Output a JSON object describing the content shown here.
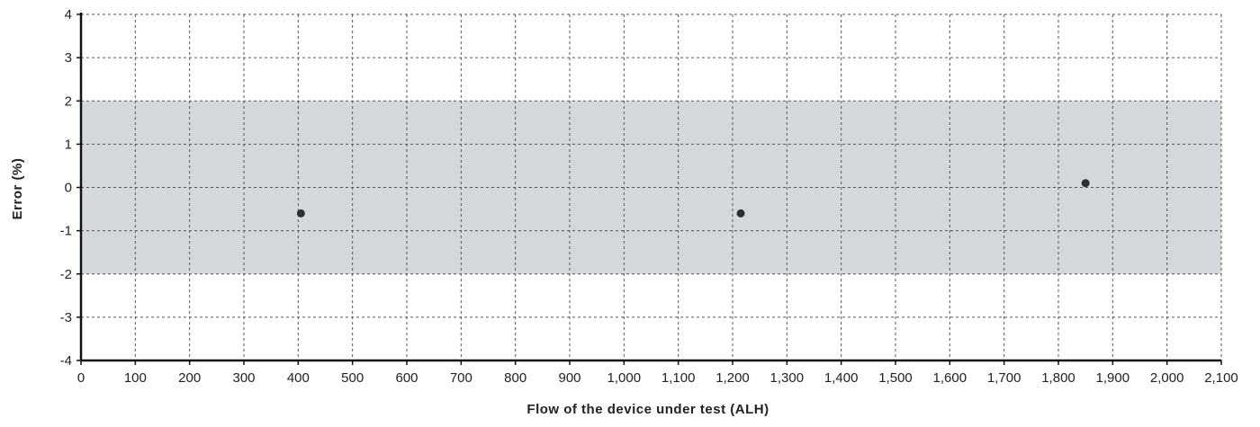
{
  "chart_data": {
    "type": "scatter",
    "title": "",
    "xlabel": "Flow of the device under test (ALH)",
    "ylabel": "Error (%)",
    "xlim": [
      0,
      2100
    ],
    "ylim": [
      -4,
      4
    ],
    "x_ticks": [
      0,
      100,
      200,
      300,
      400,
      500,
      600,
      700,
      800,
      900,
      1000,
      1100,
      1200,
      1300,
      1400,
      1500,
      1600,
      1700,
      1800,
      1900,
      2000,
      2100
    ],
    "x_tick_labels": [
      "0",
      "100",
      "200",
      "300",
      "400",
      "500",
      "600",
      "700",
      "800",
      "900",
      "1,000",
      "1,100",
      "1,200",
      "1,300",
      "1,400",
      "1,500",
      "1,600",
      "1,700",
      "1,800",
      "1,900",
      "2,000",
      "2,100"
    ],
    "y_ticks": [
      4,
      3,
      2,
      1,
      0,
      -1,
      -2,
      -3,
      -4
    ],
    "y_tick_labels": [
      "4",
      "3",
      "2",
      "1",
      "0",
      "-1",
      "-2",
      "-3",
      "-4"
    ],
    "grid": true,
    "tolerance_band": {
      "upper": 2,
      "lower": -2
    },
    "series": [
      {
        "points": [
          {
            "x": 405,
            "y": -0.6
          },
          {
            "x": 1215,
            "y": -0.6
          },
          {
            "x": 1850,
            "y": 0.1
          }
        ]
      }
    ],
    "colors": {
      "band": "#d4d7db",
      "grid": "#555555",
      "marker": "#2b2f33",
      "axis": "#111111"
    }
  }
}
